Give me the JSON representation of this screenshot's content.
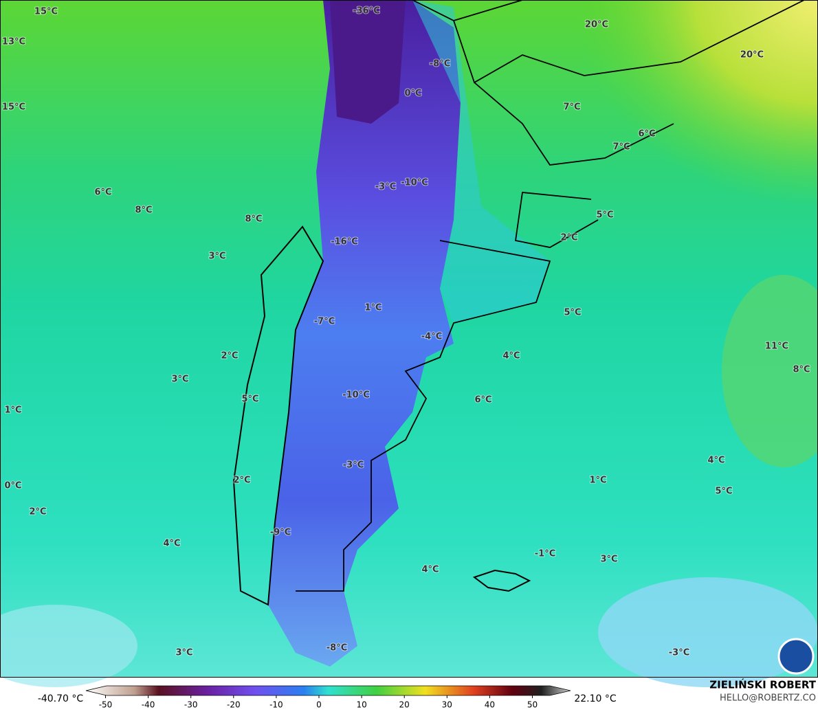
{
  "map_labels": [
    "-36°C",
    "15°C",
    "13°C",
    "15°C",
    "20°C",
    "20°C",
    "-8°C",
    "0°C",
    "7°C",
    "6°C",
    "7°C",
    "-3°C",
    "-10°C",
    "6°C",
    "8°C",
    "8°C",
    "5°C",
    "2°C",
    "-16°C",
    "3°C",
    "1°C",
    "5°C",
    "-7°C",
    "-4°C",
    "11°C",
    "2°C",
    "4°C",
    "8°C",
    "3°C",
    "-10°C",
    "5°C",
    "6°C",
    "1°C",
    "4°C",
    "-3°C",
    "1°C",
    "2°C",
    "0°C",
    "5°C",
    "2°C",
    "-9°C",
    "4°C",
    "-1°C",
    "3°C",
    "4°C",
    "-8°C",
    "3°C",
    "-3°C"
  ],
  "colorbar": {
    "min_label": "-40.70 °C",
    "max_label": "22.10 °C",
    "ticks": [
      -50,
      -40,
      -30,
      -20,
      -10,
      0,
      10,
      20,
      30,
      40,
      50
    ]
  },
  "credit": {
    "author": "ZIELIŃSKI ROBERT",
    "email": "HELLO@ROBERTZ.CO"
  }
}
